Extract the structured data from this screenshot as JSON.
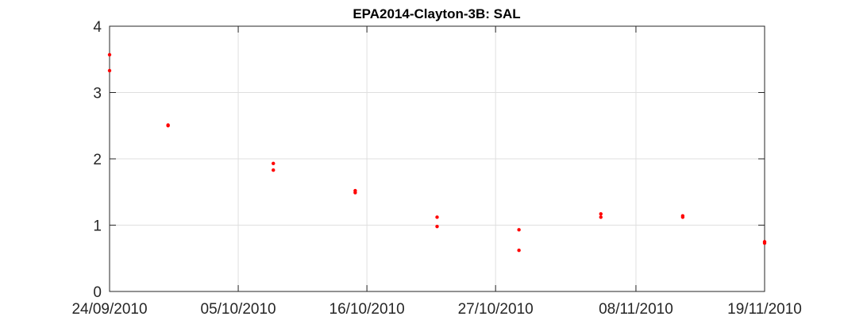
{
  "chart_data": {
    "type": "scatter",
    "title": "EPA2014-Clayton-3B: SAL",
    "xlabel": "",
    "ylabel": "",
    "x_axis": {
      "type": "date",
      "range": [
        "24/09/2010",
        "19/11/2010"
      ],
      "ticks": [
        "24/09/2010",
        "05/10/2010",
        "16/10/2010",
        "27/10/2010",
        "08/11/2010",
        "19/11/2010"
      ]
    },
    "y_axis": {
      "range": [
        0,
        4
      ],
      "ticks": [
        "0",
        "1",
        "2",
        "3",
        "4"
      ]
    },
    "grid": true,
    "marker_color": "#ff0000",
    "points": [
      {
        "x": "24/09/2010",
        "y": 3.57
      },
      {
        "x": "24/09/2010",
        "y": 3.33
      },
      {
        "x": "29/09/2010",
        "y": 2.51
      },
      {
        "x": "29/09/2010",
        "y": 2.5
      },
      {
        "x": "08/10/2010",
        "y": 1.93
      },
      {
        "x": "08/10/2010",
        "y": 1.83
      },
      {
        "x": "15/10/2010",
        "y": 1.52
      },
      {
        "x": "15/10/2010",
        "y": 1.49
      },
      {
        "x": "22/10/2010",
        "y": 1.12
      },
      {
        "x": "22/10/2010",
        "y": 0.98
      },
      {
        "x": "29/10/2010",
        "y": 0.93
      },
      {
        "x": "29/10/2010",
        "y": 0.62
      },
      {
        "x": "05/11/2010",
        "y": 1.17
      },
      {
        "x": "05/11/2010",
        "y": 1.12
      },
      {
        "x": "12/11/2010",
        "y": 1.14
      },
      {
        "x": "12/11/2010",
        "y": 1.12
      },
      {
        "x": "19/11/2010",
        "y": 0.75
      },
      {
        "x": "19/11/2010",
        "y": 0.73
      }
    ]
  }
}
